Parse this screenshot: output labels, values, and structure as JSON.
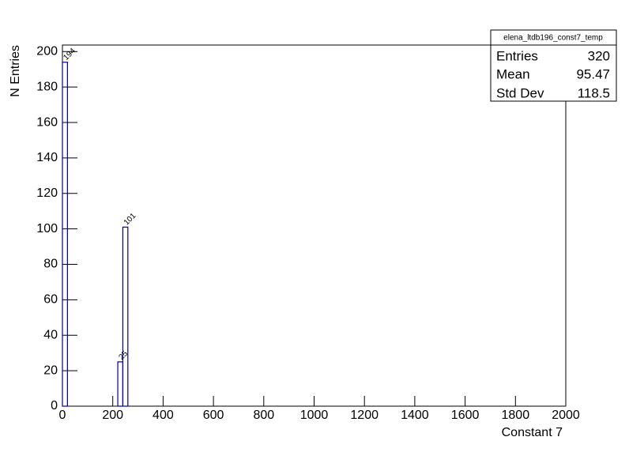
{
  "chart_data": {
    "type": "histogram",
    "x_label": "Constant 7",
    "y_label": "N Entries",
    "bins": [
      0,
      20,
      220,
      240,
      260
    ],
    "values": [
      194,
      0,
      25,
      101
    ],
    "color": "#000099",
    "xlim": [
      0,
      2000
    ],
    "xticks": [
      0,
      200,
      400,
      600,
      800,
      1000,
      1200,
      1400,
      1600,
      1800,
      2000
    ],
    "ylim": [
      0,
      203.7
    ],
    "yticks": [
      0,
      20,
      40,
      60,
      80,
      100,
      120,
      140,
      160,
      180,
      200
    ],
    "value_labels_shown": true,
    "stats": {
      "title": "elena_ltdb196_const7_temp",
      "rows": [
        [
          "Entries",
          320
        ],
        [
          "Mean",
          95.47
        ],
        [
          "Std Dev",
          118.5
        ]
      ]
    }
  }
}
